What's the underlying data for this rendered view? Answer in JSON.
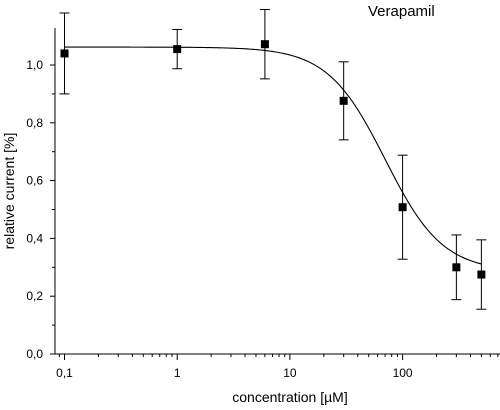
{
  "chart_data": {
    "type": "scatter",
    "title": "Verapamil",
    "xlabel": "concentration [µM]",
    "ylabel": "relative current [%]",
    "x_scale": "log",
    "xlim": [
      0.05,
      700
    ],
    "ylim": [
      0.0,
      1.13
    ],
    "x_ticks": [
      0.1,
      1,
      10,
      100
    ],
    "x_tick_labels": [
      "0,1",
      "1",
      "10",
      "100"
    ],
    "y_ticks": [
      0.0,
      0.2,
      0.4,
      0.6,
      0.8,
      1.0
    ],
    "y_tick_labels": [
      "0,0",
      "0,2",
      "0,4",
      "0,6",
      "0,8",
      "1,0"
    ],
    "grid": false,
    "points": [
      {
        "x": 0.1,
        "y": 1.04,
        "err": 0.14
      },
      {
        "x": 1,
        "y": 1.055,
        "err": 0.068
      },
      {
        "x": 6,
        "y": 1.072,
        "err": 0.12
      },
      {
        "x": 30,
        "y": 0.876,
        "err": 0.135
      },
      {
        "x": 100,
        "y": 0.508,
        "err": 0.18
      },
      {
        "x": 300,
        "y": 0.3,
        "err": 0.112
      },
      {
        "x": 500,
        "y": 0.275,
        "err": 0.12
      }
    ],
    "fit_curve": {
      "model": "hill",
      "top": 1.062,
      "bottom": 0.285,
      "ic50": 70,
      "hill": 1.7
    }
  }
}
